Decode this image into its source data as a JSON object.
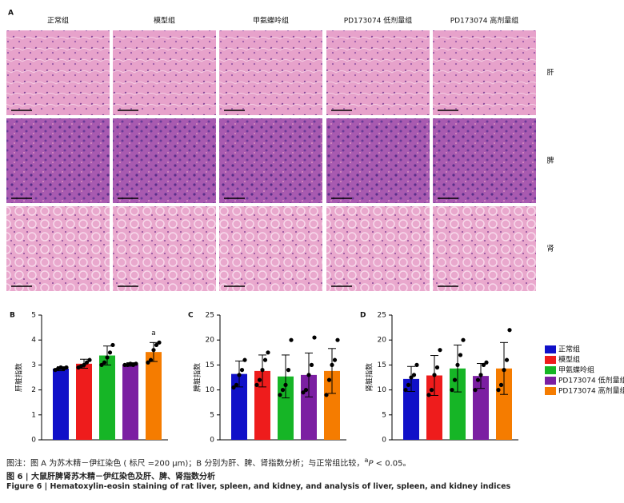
{
  "panel_a": {
    "label": "A",
    "rows": [
      "肝",
      "脾",
      "肾"
    ]
  },
  "groups": [
    {
      "name": "正常组",
      "color": "#1010c8"
    },
    {
      "name": "模型组",
      "color": "#ee1c1c"
    },
    {
      "name": "甲氨蝶呤组",
      "color": "#16b526"
    },
    {
      "name": "PD173074 低剂量组",
      "color": "#7b1fa2"
    },
    {
      "name": "PD173074 高剂量组",
      "color": "#f57c00"
    }
  ],
  "chart_data": [
    {
      "type": "bar",
      "label": "B",
      "ylabel": "肝脏指数",
      "ylim": [
        0,
        5
      ],
      "yticks": [
        0,
        1,
        2,
        3,
        4,
        5
      ],
      "values": [
        2.85,
        3.05,
        3.38,
        3.02,
        3.52
      ],
      "errors": [
        0.08,
        0.18,
        0.38,
        0.07,
        0.38
      ],
      "points": [
        [
          2.8,
          2.85,
          2.9,
          2.85,
          2.9
        ],
        [
          2.9,
          2.95,
          3.0,
          3.1,
          3.2
        ],
        [
          3.0,
          3.1,
          3.3,
          3.5,
          3.8
        ],
        [
          3.0,
          3.0,
          3.05,
          3.0,
          3.05
        ],
        [
          3.1,
          3.2,
          3.6,
          3.8,
          3.9
        ]
      ],
      "annotations": [
        {
          "index": 4,
          "text": "a"
        }
      ]
    },
    {
      "type": "bar",
      "label": "C",
      "ylabel": "脾脏指数",
      "ylim": [
        0,
        25
      ],
      "yticks": [
        0,
        5,
        10,
        15,
        20,
        25
      ],
      "values": [
        13.2,
        13.8,
        12.7,
        13.0,
        13.8
      ],
      "errors": [
        2.6,
        3.2,
        4.3,
        4.4,
        4.5
      ],
      "points": [
        [
          10.5,
          11,
          13,
          14,
          16
        ],
        [
          11,
          12,
          14,
          16,
          17.5
        ],
        [
          9,
          10,
          11,
          14,
          20
        ],
        [
          9.5,
          10,
          13,
          15,
          20.5
        ],
        [
          9,
          12,
          15,
          16,
          20
        ]
      ]
    },
    {
      "type": "bar",
      "label": "D",
      "ylabel": "肾脏指数",
      "ylim": [
        0,
        25
      ],
      "yticks": [
        0,
        5,
        10,
        15,
        20,
        25
      ],
      "values": [
        12.2,
        12.9,
        14.3,
        12.8,
        14.3
      ],
      "errors": [
        2.5,
        4.0,
        4.7,
        2.5,
        5.2
      ],
      "points": [
        [
          10,
          11,
          12.5,
          13,
          15
        ],
        [
          9,
          10,
          13,
          14.5,
          18
        ],
        [
          10,
          12,
          15,
          17,
          20
        ],
        [
          10,
          12,
          13,
          15,
          15.5
        ],
        [
          10,
          11,
          14,
          16,
          22
        ]
      ]
    }
  ],
  "caption": {
    "note": [
      "图注：图 A 为苏木精－伊红染色 ( 标尺 =200 μm)；B 分别为肝、脾、肾指数分析；与正常组比较，",
      "a",
      "P",
      " < 0.05。"
    ],
    "title_cn": "图 6 | 大鼠肝脾肾苏木精－伊红染色及肝、脾、肾指数分析",
    "title_en": "Figure 6 | Hematoxylin-eosin staining of rat liver, spleen, and kidney, and analysis of liver, spleen, and kidney indices"
  }
}
